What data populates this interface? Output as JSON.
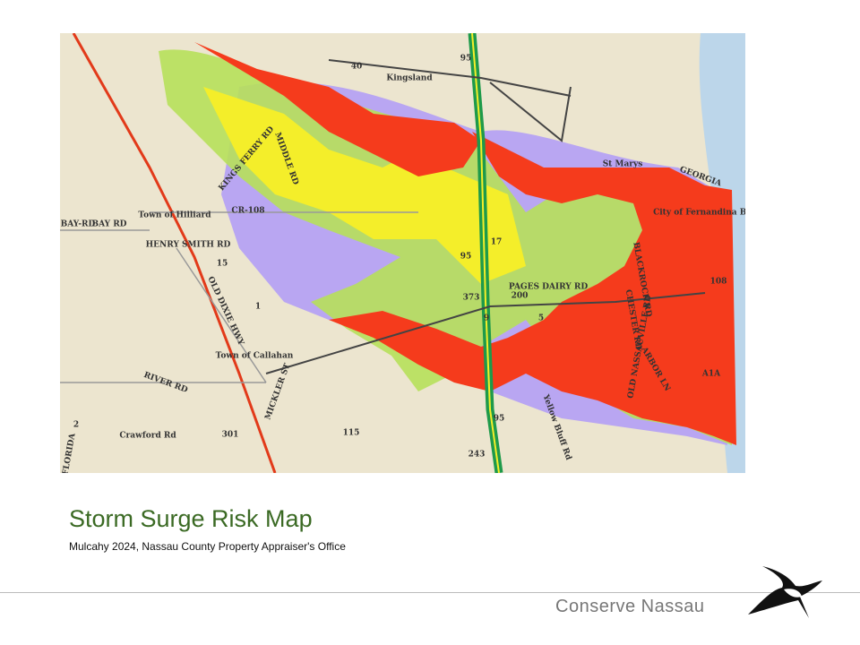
{
  "slide": {
    "title": "Storm Surge Risk Map",
    "source": "Mulcahy 2024, Nassau County Property Appraiser's Office",
    "footer": "Conserve Nassau"
  },
  "map": {
    "labels": [
      "40",
      "95",
      "Kingsland",
      "St Marys",
      "KINGS FERRY RD",
      "MIDDLE RD",
      "CR-108",
      "BAY-RD",
      "BAY RD",
      "Town of Hilliard",
      "HENRY SMITH RD",
      "15",
      "1",
      "OLD DIXIE HWY",
      "17",
      "95",
      "PAGES DAIRY RD",
      "200",
      "9",
      "5",
      "373",
      "BLACKROCK RD",
      "CHESTER RD",
      "OLD NASSAUVILLE RD",
      "ARBOR LN",
      "108",
      "A1A",
      "Town of Callahan",
      "RIVER RD",
      "MICKLER ST",
      "Crawford Rd",
      "301",
      "115",
      "2",
      "243",
      "95",
      "City of Fernandina Beach",
      "GEORGIA",
      "FLORIDA",
      "Yellow Bluff Rd"
    ]
  }
}
